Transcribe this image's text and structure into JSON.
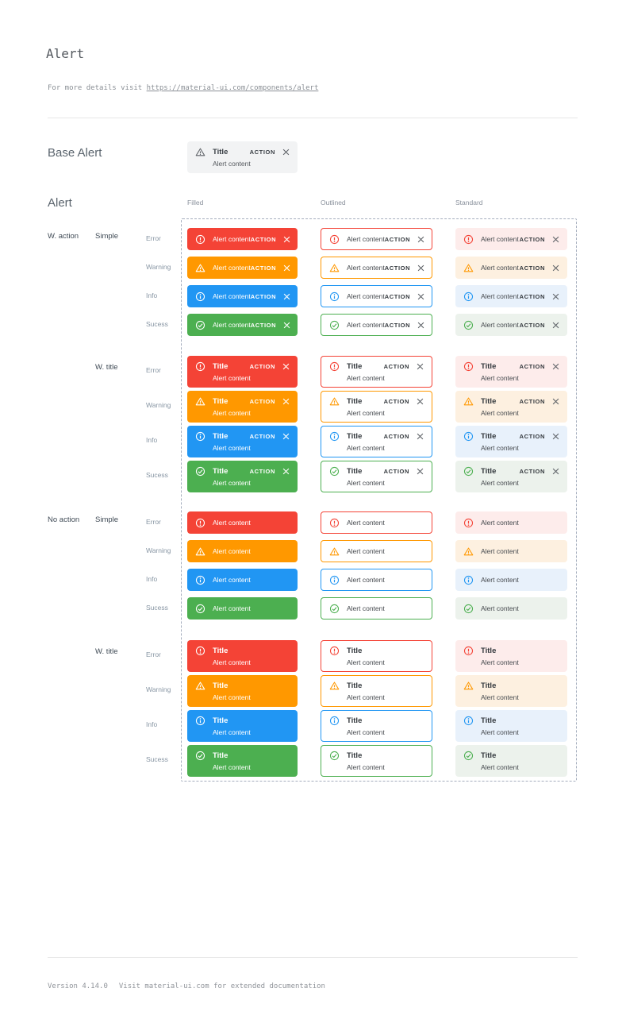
{
  "page": {
    "title": "Alert",
    "subtitle_prefix": "For more details visit ",
    "subtitle_link": "https://material-ui.com/components/alert",
    "footer_version": "Version 4.14.0",
    "footer_note": "Visit material-ui.com for extended documentation"
  },
  "base_section": {
    "heading": "Base Alert"
  },
  "alert_text": {
    "title": "Title",
    "content": "Alert content",
    "action": "ACTION"
  },
  "grid": {
    "heading": "Alert",
    "columns": [
      {
        "label": "Filled",
        "variant": "filled"
      },
      {
        "label": "Outlined",
        "variant": "outlined"
      },
      {
        "label": "Standard",
        "variant": "standard"
      }
    ],
    "severities": [
      {
        "label": "Error",
        "key": "error",
        "icon": "error-circle-icon"
      },
      {
        "label": "Warning",
        "key": "warning",
        "icon": "warning-triangle-icon"
      },
      {
        "label": "Info",
        "key": "info",
        "icon": "info-circle-icon"
      },
      {
        "label": "Sucess",
        "key": "success",
        "icon": "check-circle-icon"
      }
    ],
    "groups": [
      {
        "action_label": "W. action",
        "variant_label": "Simple",
        "with_title": false,
        "with_action": true
      },
      {
        "action_label": "",
        "variant_label": "W. title",
        "with_title": true,
        "with_action": true
      },
      {
        "action_label": "No action",
        "variant_label": "Simple",
        "with_title": false,
        "with_action": false
      },
      {
        "action_label": "",
        "variant_label": "W. title",
        "with_title": true,
        "with_action": false
      }
    ]
  },
  "colors": {
    "error": {
      "main": "#f44336",
      "standard_bg": "#fdeceb"
    },
    "warning": {
      "main": "#ff9800",
      "standard_bg": "#fdf0e0"
    },
    "info": {
      "main": "#2196f3",
      "standard_bg": "#e8f1fb"
    },
    "success": {
      "main": "#4caf50",
      "standard_bg": "#ecf2ec"
    },
    "filled_text": "#ffffff",
    "dark_text": "#33383d",
    "content_text": "#45494e",
    "close_gray": "#5f6368",
    "dashed_border": "#a4adbd"
  }
}
